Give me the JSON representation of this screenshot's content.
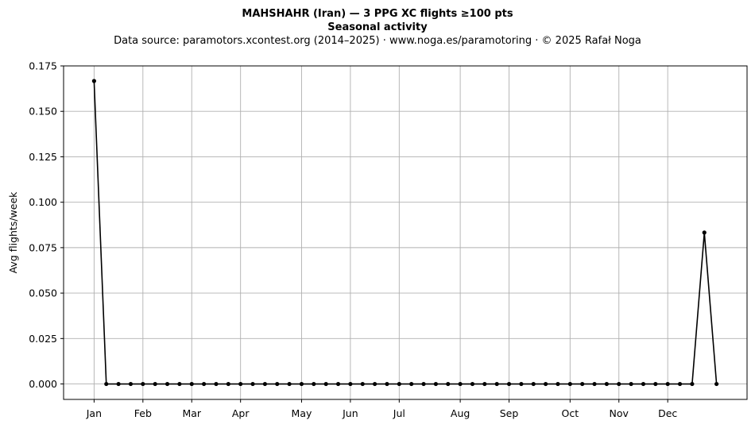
{
  "chart_data": {
    "type": "line",
    "title": "MAHSHAHR (Iran)  —  3 PPG XC flights ≥100 pts",
    "subtitle": "Seasonal activity",
    "source_line": "Data source: paramotors.xcontest.org (2014–2025)  ·  www.noga.es/paramotoring  ·  © 2025 Rafał Noga",
    "xlabel": "",
    "ylabel": "Avg flights/week",
    "xlim": [
      -2.5,
      53.5
    ],
    "ylim": [
      -0.0085,
      0.175
    ],
    "grid": true,
    "x_ticks": [
      {
        "label": "Jan",
        "week": 0
      },
      {
        "label": "Feb",
        "week": 4
      },
      {
        "label": "Mar",
        "week": 8
      },
      {
        "label": "Apr",
        "week": 12
      },
      {
        "label": "May",
        "week": 17
      },
      {
        "label": "Jun",
        "week": 21
      },
      {
        "label": "Jul",
        "week": 25
      },
      {
        "label": "Aug",
        "week": 30
      },
      {
        "label": "Sep",
        "week": 34
      },
      {
        "label": "Oct",
        "week": 39
      },
      {
        "label": "Nov",
        "week": 43
      },
      {
        "label": "Dec",
        "week": 47
      }
    ],
    "y_ticks": [
      "0.000",
      "0.025",
      "0.050",
      "0.075",
      "0.100",
      "0.125",
      "0.150",
      "0.175"
    ],
    "series": [
      {
        "color": "#000000",
        "x": [
          0,
          1,
          2,
          3,
          4,
          5,
          6,
          7,
          8,
          9,
          10,
          11,
          12,
          13,
          14,
          15,
          16,
          17,
          18,
          19,
          20,
          21,
          22,
          23,
          24,
          25,
          26,
          27,
          28,
          29,
          30,
          31,
          32,
          33,
          34,
          35,
          36,
          37,
          38,
          39,
          40,
          41,
          42,
          43,
          44,
          45,
          46,
          47,
          48,
          49,
          50,
          51
        ],
        "values": [
          0.1667,
          0,
          0,
          0,
          0,
          0,
          0,
          0,
          0,
          0,
          0,
          0,
          0,
          0,
          0,
          0,
          0,
          0,
          0,
          0,
          0,
          0,
          0,
          0,
          0,
          0,
          0,
          0,
          0,
          0,
          0,
          0,
          0,
          0,
          0,
          0,
          0,
          0,
          0,
          0,
          0,
          0,
          0,
          0,
          0,
          0,
          0,
          0,
          0,
          0,
          0.0833,
          0
        ]
      }
    ]
  }
}
